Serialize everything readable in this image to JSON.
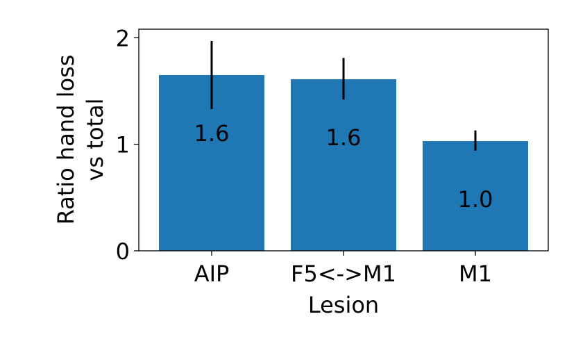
{
  "chart_data": {
    "type": "bar",
    "categories": [
      "AIP",
      "F5<->M1",
      "M1"
    ],
    "values": [
      1.65,
      1.61,
      1.03
    ],
    "errors": [
      [
        1.33,
        1.97
      ],
      [
        1.42,
        1.81
      ],
      [
        0.94,
        1.13
      ]
    ],
    "data_labels": [
      "1.6",
      "1.6",
      "1.0"
    ],
    "xlabel": "Lesion",
    "ylabel_lines": [
      "Ratio hand loss",
      "vs total"
    ],
    "ylim": [
      0,
      2.08
    ],
    "yticks": [
      0,
      1,
      2
    ],
    "ytick_labels": [
      "0",
      "1",
      "2"
    ],
    "grid": false,
    "bar_color": "#1f77b4",
    "error_color": "#000000"
  }
}
